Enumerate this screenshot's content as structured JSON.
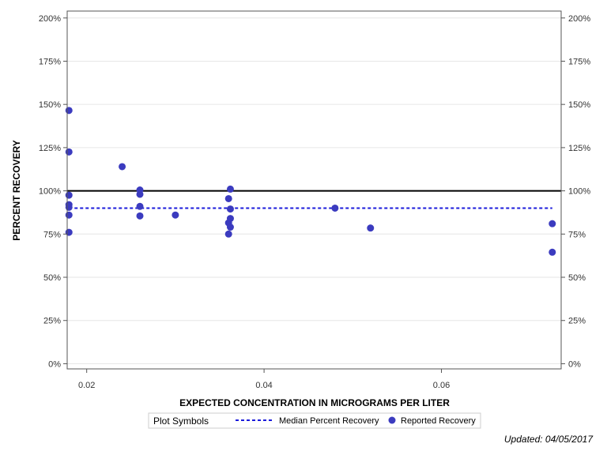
{
  "chart_data": {
    "type": "scatter",
    "xlabel": "EXPECTED CONCENTRATION IN MICROGRAMS PER LITER",
    "ylabel": "PERCENT RECOVERY",
    "xlim": [
      0.0178,
      0.0735
    ],
    "ylim": [
      -3,
      204
    ],
    "x_ticks": [
      0.02,
      0.04,
      0.06
    ],
    "x_tick_labels": [
      "0.02",
      "0.04",
      "0.06"
    ],
    "y_ticks": [
      0,
      25,
      50,
      75,
      100,
      125,
      150,
      175,
      200
    ],
    "y_tick_labels": [
      "0%",
      "25%",
      "50%",
      "75%",
      "100%",
      "125%",
      "150%",
      "175%",
      "200%"
    ],
    "grid": "horizontal",
    "reference_line": {
      "y": 100,
      "color": "#000000"
    },
    "median_line": {
      "y": 90,
      "x_range": [
        0.018,
        0.0725
      ],
      "color": "#1a1adb"
    },
    "series": [
      {
        "name": "Reported Recovery",
        "color": "#3b3bbf",
        "points": [
          [
            0.018,
            146.5
          ],
          [
            0.018,
            122.5
          ],
          [
            0.018,
            97.5
          ],
          [
            0.018,
            92
          ],
          [
            0.018,
            90.5
          ],
          [
            0.018,
            86
          ],
          [
            0.018,
            76
          ],
          [
            0.024,
            114
          ],
          [
            0.026,
            100.5
          ],
          [
            0.026,
            98
          ],
          [
            0.026,
            91
          ],
          [
            0.026,
            85.5
          ],
          [
            0.03,
            86
          ],
          [
            0.036,
            95.5
          ],
          [
            0.036,
            81.5
          ],
          [
            0.036,
            75
          ],
          [
            0.0362,
            101
          ],
          [
            0.0362,
            89.5
          ],
          [
            0.0362,
            84
          ],
          [
            0.0362,
            79
          ],
          [
            0.048,
            90
          ],
          [
            0.052,
            78.5
          ],
          [
            0.0725,
            81
          ],
          [
            0.0725,
            64.5
          ]
        ]
      }
    ],
    "legend": {
      "title": "Plot Symbols",
      "position": "bottom-center",
      "entries": [
        {
          "label": "Median Percent Recovery",
          "type": "dashed-line",
          "color": "#1a1adb"
        },
        {
          "label": "Reported Recovery",
          "type": "marker",
          "color": "#3b3bbf"
        }
      ]
    },
    "updated": "Updated: 04/05/2017"
  }
}
